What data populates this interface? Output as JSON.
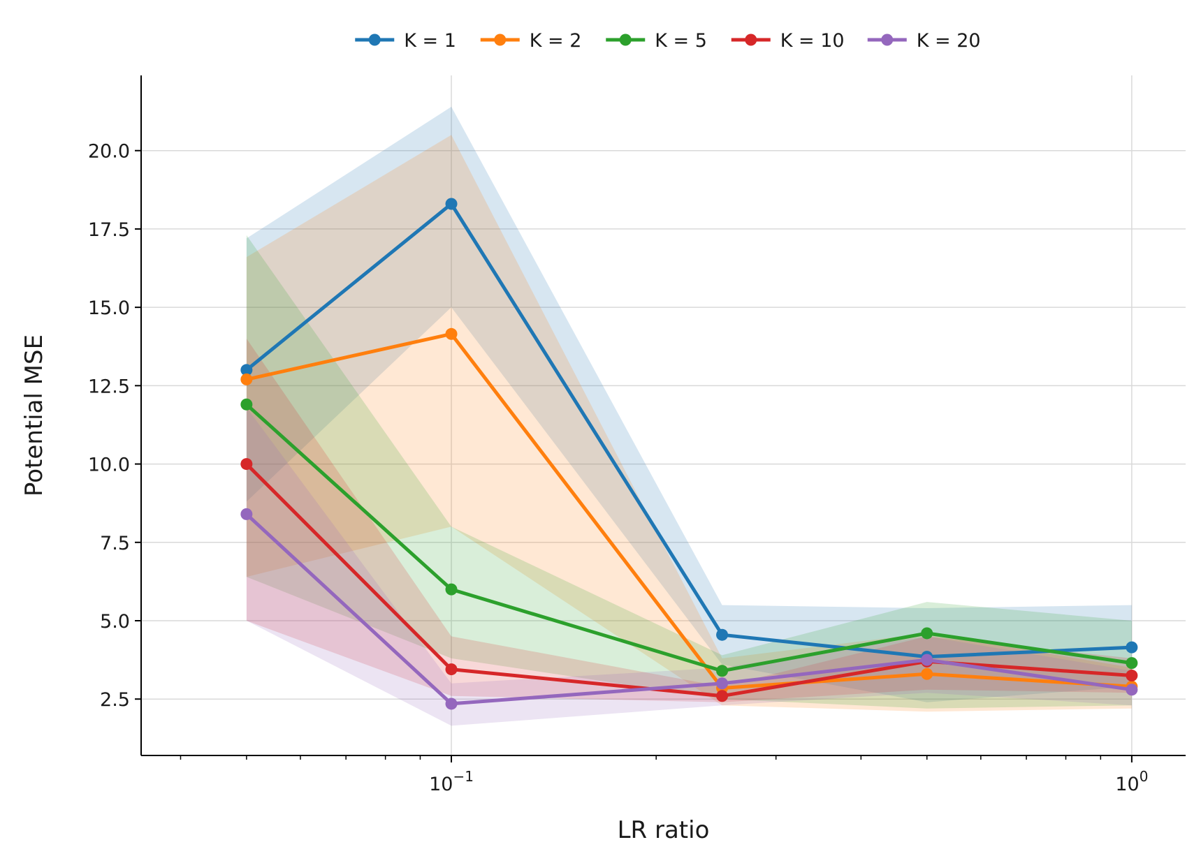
{
  "chart_data": {
    "type": "line",
    "xlabel": "LR ratio",
    "ylabel": "Potential MSE",
    "xscale": "log",
    "x": [
      0.05,
      0.1,
      0.25,
      0.5,
      1.0
    ],
    "xlim": [
      0.035,
      1.2
    ],
    "ylim": [
      0.7,
      22.4
    ],
    "yticks": [
      2.5,
      5.0,
      7.5,
      10.0,
      12.5,
      15.0,
      17.5,
      20.0
    ],
    "ytick_labels": [
      "2.5",
      "5.0",
      "7.5",
      "10.0",
      "12.5",
      "15.0",
      "17.5",
      "20.0"
    ],
    "xticks": [
      0.1,
      1.0
    ],
    "xtick_labels": [
      {
        "base": "10",
        "exp": "−1"
      },
      {
        "base": "10",
        "exp": "0"
      }
    ],
    "grid": true,
    "legend_position": "top-center",
    "series": [
      {
        "name": "K = 1",
        "color": "#1f77b4",
        "values": [
          13.0,
          18.3,
          4.55,
          3.85,
          4.15
        ],
        "lower": [
          8.8,
          15.0,
          3.6,
          2.4,
          2.9
        ],
        "upper": [
          17.2,
          21.4,
          5.5,
          5.4,
          5.5
        ]
      },
      {
        "name": "K = 2",
        "color": "#ff7f0e",
        "values": [
          12.7,
          14.15,
          2.85,
          3.3,
          2.9
        ],
        "lower": [
          6.4,
          8.0,
          2.3,
          2.1,
          2.2
        ],
        "upper": [
          16.6,
          20.5,
          3.8,
          4.6,
          3.5
        ]
      },
      {
        "name": "K = 5",
        "color": "#2ca02c",
        "values": [
          11.9,
          6.0,
          3.4,
          4.6,
          3.65
        ],
        "lower": [
          6.4,
          3.8,
          2.5,
          2.2,
          2.3
        ],
        "upper": [
          17.3,
          8.0,
          3.9,
          5.6,
          5.0
        ]
      },
      {
        "name": "K = 10",
        "color": "#d62728",
        "values": [
          10.0,
          3.45,
          2.6,
          3.7,
          3.25
        ],
        "lower": [
          5.0,
          2.6,
          2.4,
          2.8,
          2.7
        ],
        "upper": [
          14.0,
          4.5,
          2.9,
          4.5,
          3.8
        ]
      },
      {
        "name": "K = 20",
        "color": "#9467bd",
        "values": [
          8.4,
          2.35,
          3.0,
          3.75,
          2.8
        ],
        "lower": [
          5.0,
          1.65,
          2.3,
          2.7,
          2.3
        ],
        "upper": [
          11.8,
          3.0,
          3.5,
          4.5,
          3.4
        ]
      }
    ]
  }
}
